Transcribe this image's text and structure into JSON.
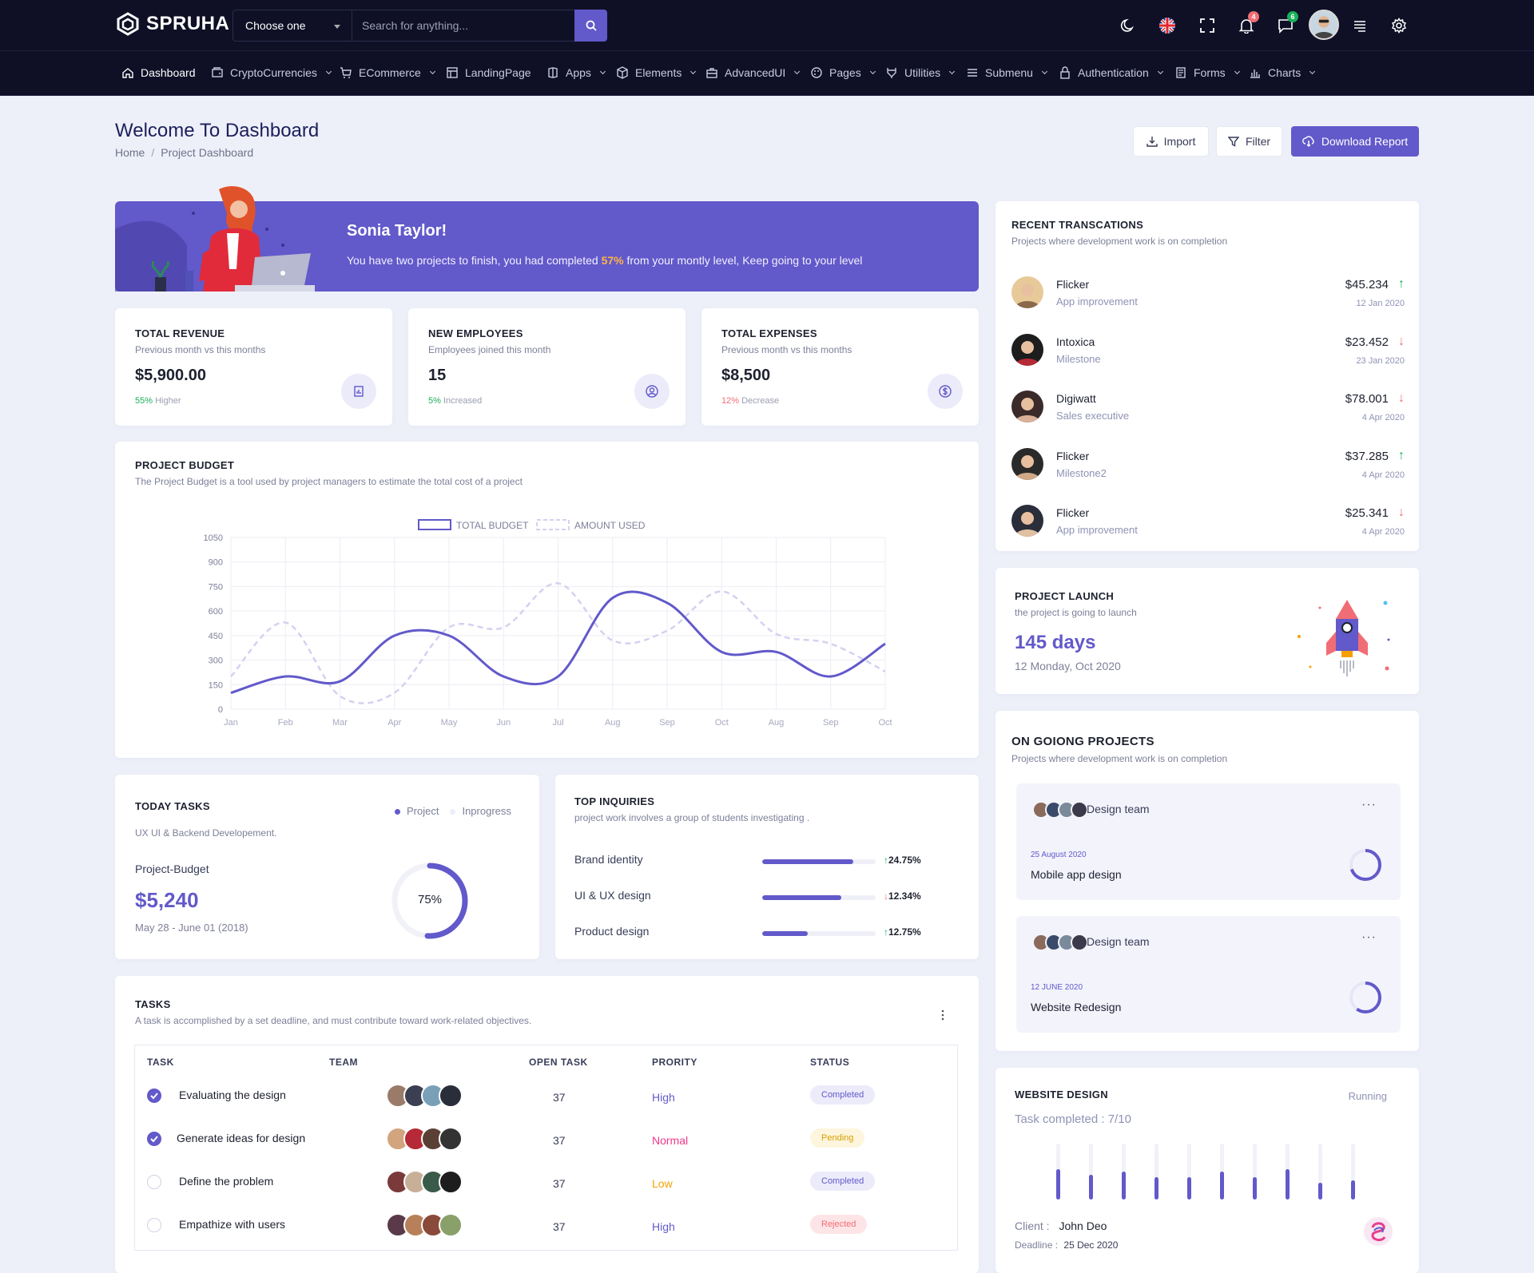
{
  "brand": {
    "name": "SPRUHA"
  },
  "header": {
    "choose_label": "Choose one",
    "search_placeholder": "Search for anything...",
    "notifications_count": "4",
    "messages_count": "6"
  },
  "nav": [
    {
      "label": "Dashboard",
      "icon": "home-icon",
      "caret": false,
      "active": true
    },
    {
      "label": "CryptoCurrencies",
      "icon": "wallet-icon",
      "caret": true
    },
    {
      "label": "ECommerce",
      "icon": "cart-icon",
      "caret": true
    },
    {
      "label": "LandingPage",
      "icon": "layout-icon",
      "caret": false
    },
    {
      "label": "Apps",
      "icon": "apps-icon",
      "caret": true
    },
    {
      "label": "Elements",
      "icon": "box-icon",
      "caret": true
    },
    {
      "label": "AdvancedUI",
      "icon": "briefcase-icon",
      "caret": true
    },
    {
      "label": "Pages",
      "icon": "palette-icon",
      "caret": true
    },
    {
      "label": "Utilities",
      "icon": "tools-icon",
      "caret": true
    },
    {
      "label": "Submenu",
      "icon": "menu-icon",
      "caret": true
    },
    {
      "label": "Authentication",
      "icon": "lock-icon",
      "caret": true
    },
    {
      "label": "Forms",
      "icon": "form-icon",
      "caret": true
    },
    {
      "label": "Charts",
      "icon": "chart-icon",
      "caret": true
    }
  ],
  "page": {
    "title": "Welcome To Dashboard",
    "breadcrumb": [
      "Home",
      "Project Dashboard"
    ],
    "import_label": "Import",
    "filter_label": "Filter",
    "download_label": "Download Report"
  },
  "banner": {
    "name": "Sonia Taylor!",
    "text_before": "You have two projects to finish, you had completed ",
    "highlight": "57%",
    "text_after": " from your montly level, Keep going to your level"
  },
  "stats": [
    {
      "title": "TOTAL REVENUE",
      "sub": "Previous month vs this months",
      "value": "$5,900.00",
      "pct": "55%",
      "trend": "Higher",
      "trend_color": "#19b159",
      "icon": "report-icon"
    },
    {
      "title": "NEW EMPLOYEES",
      "sub": "Employees joined this month",
      "value": "15",
      "pct": "5%",
      "trend": "Increased",
      "trend_color": "#19b159",
      "icon": "user-circle-icon"
    },
    {
      "title": "TOTAL EXPENSES",
      "sub": "Previous month vs this months",
      "value": "$8,500",
      "pct": "12%",
      "trend": "Decrease",
      "trend_color": "#f16d75",
      "icon": "dollar-icon"
    }
  ],
  "budget": {
    "title": "PROJECT BUDGET",
    "sub": "The Project Budget is a tool used by project managers to estimate the total cost of a project"
  },
  "chart_data": {
    "type": "line",
    "x": [
      "Jan",
      "Feb",
      "Mar",
      "Apr",
      "May",
      "Jun",
      "Jul",
      "Aug",
      "Sep",
      "Oct",
      "Aug",
      "Sep",
      "Oct"
    ],
    "series": [
      {
        "name": "TOTAL BUDGET",
        "values": [
          100,
          200,
          170,
          450,
          450,
          200,
          200,
          680,
          650,
          350,
          350,
          200,
          400
        ],
        "color": "#6259ca",
        "style": "solid"
      },
      {
        "name": "AMOUNT USED",
        "values": [
          200,
          530,
          80,
          100,
          500,
          500,
          770,
          420,
          480,
          720,
          460,
          400,
          230
        ],
        "color": "#d4d1f0",
        "style": "dashed"
      }
    ],
    "ylim": [
      0,
      1050
    ],
    "yticks": [
      0,
      150,
      300,
      450,
      600,
      750,
      900,
      1050
    ],
    "grid": true,
    "legend": "top-center"
  },
  "today_tasks": {
    "title": "TODAY TASKS",
    "sub": "UX UI & Backend Developement.",
    "legend_project": "Project",
    "legend_inprogress": "Inprogress",
    "label": "Project-Budget",
    "amount": "$5,240",
    "dates": "May 28 - June 01 (2018)",
    "percent_label": "75%",
    "percent": 0.75
  },
  "inquiries": {
    "title": "TOP INQUIRIES",
    "sub": "project work involves a group of students investigating .",
    "items": [
      {
        "label": "Brand identity",
        "fraction": 0.8,
        "pct": "24.75%",
        "dir": "up"
      },
      {
        "label": "UI & UX design",
        "fraction": 0.7,
        "pct": "12.34%",
        "dir": "down"
      },
      {
        "label": "Product design",
        "fraction": 0.4,
        "pct": "12.75%",
        "dir": "up"
      }
    ]
  },
  "tasks": {
    "title": "TASKS",
    "sub": "A task is accomplished by a set deadline, and must contribute toward work-related objectives.",
    "headers": [
      "TASK",
      "TEAM",
      "OPEN TASK",
      "PRORITY",
      "STATUS"
    ],
    "rows": [
      {
        "checked": true,
        "task": "Evaluating the design",
        "open": "37",
        "priority": "High",
        "priority_color": "#6259ca",
        "status": "Completed",
        "status_bg": "#ecebfa",
        "status_color": "#6259ca"
      },
      {
        "checked": true,
        "task": "Generate ideas for design",
        "open": "37",
        "priority": "Normal",
        "priority_color": "#f1388b",
        "status": "Pending",
        "status_bg": "#fdf5dd",
        "status_color": "#d8a000"
      },
      {
        "checked": false,
        "task": "Define the problem",
        "open": "37",
        "priority": "Low",
        "priority_color": "#f7a000",
        "status": "Completed",
        "status_bg": "#ecebfa",
        "status_color": "#6259ca"
      },
      {
        "checked": false,
        "task": "Empathize with users",
        "open": "37",
        "priority": "High",
        "priority_color": "#6259ca",
        "status": "Rejected",
        "status_bg": "#fde5e7",
        "status_color": "#f16d75"
      }
    ]
  },
  "transactions": {
    "title": "RECENT TRANSCATIONS",
    "sub": "Projects where development work is on completion",
    "items": [
      {
        "name": "Flicker",
        "desc": "App improvement",
        "amount": "$45.234",
        "date": "12 Jan 2020",
        "dir": "up"
      },
      {
        "name": "Intoxica",
        "desc": "Milestone",
        "amount": "$23.452",
        "date": "23 Jan 2020",
        "dir": "down"
      },
      {
        "name": "Digiwatt",
        "desc": "Sales executive",
        "amount": "$78.001",
        "date": "4 Apr 2020",
        "dir": "down"
      },
      {
        "name": "Flicker",
        "desc": "Milestone2",
        "amount": "$37.285",
        "date": "4 Apr 2020",
        "dir": "up"
      },
      {
        "name": "Flicker",
        "desc": "App improvement",
        "amount": "$25.341",
        "date": "4 Apr 2020",
        "dir": "down"
      }
    ]
  },
  "launch": {
    "title": "PROJECT LAUNCH",
    "sub": "the project is going to launch",
    "days": "145 days",
    "date": "12 Monday, Oct 2020"
  },
  "ongoing": {
    "title": "ON GOIONG PROJECTS",
    "sub": "Projects where development work is on completion",
    "items": [
      {
        "team": "Design team",
        "date": "25 August 2020",
        "name": "Mobile app design",
        "progress": 0.7
      },
      {
        "team": "Design team",
        "date": "12 JUNE 2020",
        "name": "Website Redesign",
        "progress": 0.6
      }
    ]
  },
  "website": {
    "title": "WEBSITE DESIGN",
    "status": "Running",
    "completed": "Task completed : 7/10",
    "client_label": "Client :",
    "client": "John Deo",
    "deadline_label": "Deadline :",
    "deadline": "25 Dec 2020",
    "bars": [
      0.55,
      0.45,
      0.5,
      0.4,
      0.4,
      0.5,
      0.4,
      0.55,
      0.3,
      0.35
    ]
  }
}
